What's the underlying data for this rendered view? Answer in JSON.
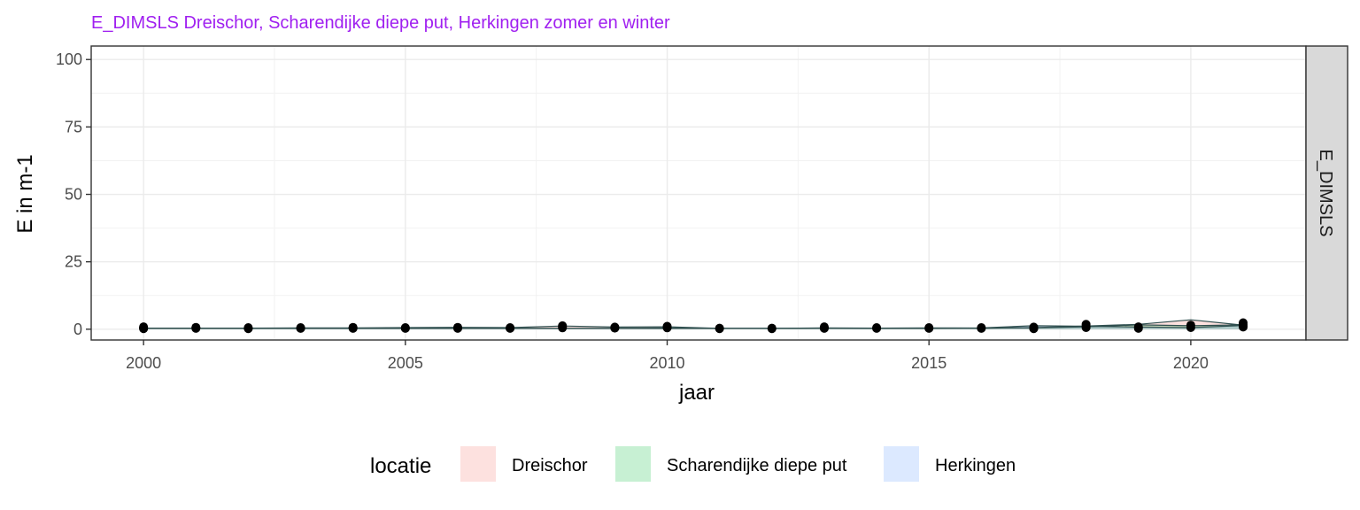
{
  "chart_data": {
    "type": "line",
    "title": "E_DIMSLS Dreischor, Scharendijke diepe put, Herkingen zomer en winter",
    "xlabel": "jaar",
    "ylabel": "E in m-1",
    "facet_label": "E_DIMSLS",
    "xlim": [
      1999,
      2022.2
    ],
    "ylim": [
      -4,
      105
    ],
    "xticks": [
      2000,
      2005,
      2010,
      2015,
      2020
    ],
    "yticks": [
      0,
      25,
      50,
      75,
      100
    ],
    "grid": true,
    "legend": {
      "title": "locatie",
      "position": "bottom",
      "entries": [
        {
          "name": "Dreischor",
          "color": "#F8766D"
        },
        {
          "name": "Scharendijke diepe put",
          "color": "#00BA38"
        },
        {
          "name": "Herkingen",
          "color": "#619CFF"
        }
      ]
    },
    "series": [
      {
        "name": "Dreischor",
        "color": "#F8766D",
        "x": [
          2000,
          2001,
          2002,
          2003,
          2004,
          2005,
          2006,
          2007,
          2008,
          2009,
          2010,
          2011,
          2012,
          2013,
          2014,
          2015,
          2016,
          2017,
          2018,
          2019,
          2020,
          2021
        ],
        "y": [
          0.4,
          0.4,
          0.4,
          0.5,
          0.5,
          0.6,
          0.7,
          0.6,
          1.2,
          0.8,
          0.9,
          0.3,
          0.3,
          0.5,
          0.4,
          0.5,
          0.4,
          0.6,
          1.2,
          1.8,
          3.5,
          1.5
        ]
      },
      {
        "name": "Scharendijke diepe put",
        "color": "#00BA38",
        "x": [
          2000,
          2001,
          2002,
          2003,
          2004,
          2005,
          2006,
          2007,
          2008,
          2009,
          2010,
          2011,
          2012,
          2013,
          2014,
          2015,
          2016,
          2017,
          2018,
          2019,
          2020,
          2021
        ],
        "y": [
          0.3,
          0.3,
          0.3,
          0.3,
          0.3,
          0.3,
          0.3,
          0.3,
          0.3,
          0.3,
          0.3,
          0.3,
          0.3,
          0.4,
          0.4,
          0.3,
          0.4,
          0.5,
          0.9,
          1.6,
          1.3,
          1.6
        ]
      },
      {
        "name": "Herkingen",
        "color": "#619CFF",
        "x": [
          2000,
          2001,
          2002,
          2003,
          2004,
          2005,
          2006,
          2007,
          2008,
          2009,
          2010,
          2011,
          2012,
          2013,
          2014,
          2015,
          2016,
          2017,
          2018,
          2019,
          2020,
          2021
        ],
        "y": [
          0.3,
          0.3,
          0.3,
          0.3,
          0.3,
          0.3,
          0.3,
          0.3,
          0.3,
          0.3,
          0.4,
          0.3,
          0.3,
          0.4,
          0.3,
          0.4,
          0.5,
          1.3,
          1.1,
          0.8,
          0.6,
          1.4
        ]
      }
    ],
    "points": {
      "x": [
        2000,
        2000,
        2000,
        2000,
        2001,
        2001,
        2001,
        2002,
        2002,
        2002,
        2003,
        2003,
        2003,
        2004,
        2004,
        2004,
        2005,
        2005,
        2005,
        2006,
        2006,
        2006,
        2007,
        2007,
        2007,
        2008,
        2008,
        2008,
        2009,
        2009,
        2009,
        2010,
        2010,
        2010,
        2011,
        2011,
        2012,
        2012,
        2013,
        2013,
        2013,
        2014,
        2014,
        2015,
        2015,
        2016,
        2016,
        2017,
        2017,
        2017,
        2017,
        2018,
        2018,
        2018,
        2019,
        2019,
        2020,
        2020,
        2021,
        2021,
        2021,
        2021
      ],
      "y": [
        0.2,
        0.6,
        0.9,
        0.3,
        0.3,
        0.7,
        0.5,
        0.2,
        0.6,
        0.4,
        0.3,
        0.6,
        0.4,
        0.3,
        0.7,
        0.5,
        0.3,
        0.6,
        0.4,
        0.3,
        0.7,
        0.5,
        0.3,
        0.6,
        0.4,
        0.5,
        1.0,
        1.3,
        0.4,
        0.8,
        0.6,
        0.5,
        1.1,
        0.8,
        0.2,
        0.4,
        0.2,
        0.4,
        0.3,
        0.9,
        0.6,
        0.3,
        0.6,
        0.3,
        0.6,
        0.3,
        0.6,
        0.2,
        0.5,
        0.8,
        0.3,
        0.6,
        1.2,
        1.8,
        0.3,
        0.9,
        0.6,
        1.5,
        0.8,
        1.6,
        2.4,
        1.2
      ]
    }
  }
}
